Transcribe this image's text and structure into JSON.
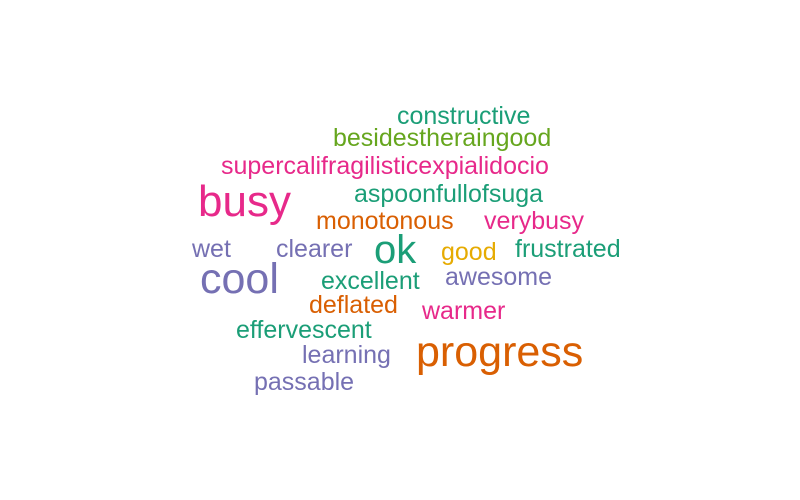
{
  "colors": {
    "teal": "#1b9e77",
    "orange": "#d95f02",
    "purple": "#7570b3",
    "pink": "#e7298a",
    "green": "#66a61e",
    "gold": "#e6ab02"
  },
  "words": [
    {
      "text": "constructive",
      "color": "#1b9e77"
    },
    {
      "text": "besidestheraingood",
      "color": "#66a61e"
    },
    {
      "text": "supercalifragilisticexpialidocio",
      "color": "#e7298a"
    },
    {
      "text": "busy",
      "color": "#e7298a"
    },
    {
      "text": "aspoonfullofsuga",
      "color": "#1b9e77"
    },
    {
      "text": "monotonous",
      "color": "#d95f02"
    },
    {
      "text": "verybusy",
      "color": "#e7298a"
    },
    {
      "text": "wet",
      "color": "#7570b3"
    },
    {
      "text": "clearer",
      "color": "#7570b3"
    },
    {
      "text": "ok",
      "color": "#1b9e77"
    },
    {
      "text": "good",
      "color": "#e6ab02"
    },
    {
      "text": "frustrated",
      "color": "#1b9e77"
    },
    {
      "text": "cool",
      "color": "#7570b3"
    },
    {
      "text": "excellent",
      "color": "#1b9e77"
    },
    {
      "text": "awesome",
      "color": "#7570b3"
    },
    {
      "text": "deflated",
      "color": "#d95f02"
    },
    {
      "text": "warmer",
      "color": "#e7298a"
    },
    {
      "text": "effervescent",
      "color": "#1b9e77"
    },
    {
      "text": "progress",
      "color": "#d95f02"
    },
    {
      "text": "learning",
      "color": "#7570b3"
    },
    {
      "text": "passable",
      "color": "#7570b3"
    }
  ]
}
